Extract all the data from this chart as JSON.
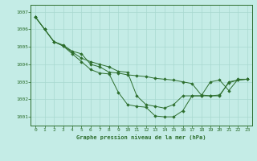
{
  "title": "Graphe pression niveau de la mer (hPa)",
  "background_color": "#c4ece6",
  "grid_color": "#a8d8d0",
  "line_color": "#2d6e2d",
  "marker_color": "#2d6e2d",
  "xlim": [
    -0.5,
    23.5
  ],
  "ylim": [
    1000.5,
    1007.4
  ],
  "yticks": [
    1001,
    1002,
    1003,
    1004,
    1005,
    1006,
    1007
  ],
  "xticks": [
    0,
    1,
    2,
    3,
    4,
    5,
    6,
    7,
    8,
    9,
    10,
    11,
    12,
    13,
    14,
    15,
    16,
    17,
    18,
    19,
    20,
    21,
    22,
    23
  ],
  "series": [
    [
      1006.7,
      1006.0,
      1005.3,
      1005.1,
      1004.75,
      1004.6,
      1004.0,
      1003.85,
      1003.55,
      1003.5,
      1003.4,
      1003.35,
      1003.3,
      1003.2,
      1003.15,
      1003.1,
      1003.0,
      1002.9,
      1002.25,
      1002.2,
      1002.2,
      1003.0,
      1003.1,
      1003.15
    ],
    [
      1006.7,
      1006.0,
      1005.3,
      1005.05,
      1004.7,
      1004.35,
      1004.15,
      1004.0,
      1003.85,
      1003.6,
      1003.55,
      1002.2,
      1001.7,
      1001.6,
      1001.5,
      1001.7,
      1002.2,
      1002.2,
      1002.2,
      1002.2,
      1002.25,
      1002.95,
      1003.1,
      1003.15
    ],
    [
      1006.7,
      1006.0,
      1005.3,
      1005.05,
      1004.6,
      1004.15,
      1003.7,
      1003.5,
      1003.45,
      1002.4,
      1001.7,
      1001.6,
      1001.55,
      1001.05,
      1001.0,
      1001.0,
      1001.35,
      1002.2,
      1002.2,
      1003.0,
      1003.1,
      1002.5,
      1003.15,
      1003.15
    ]
  ]
}
